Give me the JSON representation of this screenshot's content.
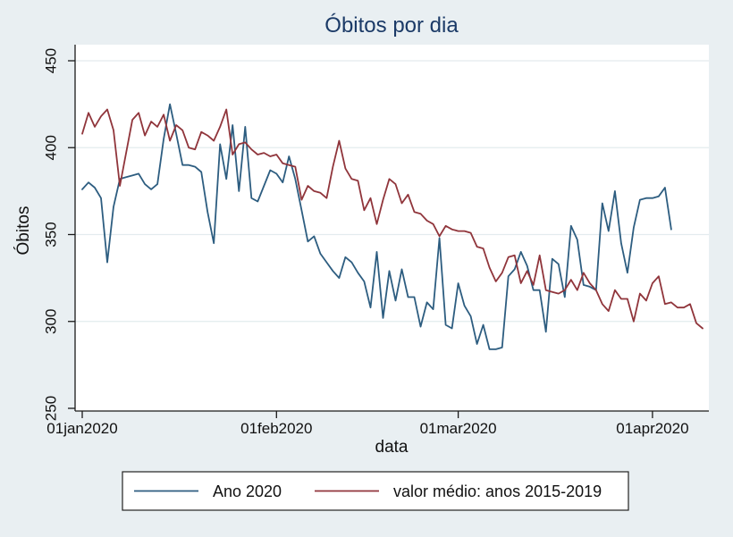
{
  "window": {
    "background": "#e9eff2",
    "plot_background": "#ffffff"
  },
  "chart_data": {
    "type": "line",
    "title": "Óbitos por dia",
    "title_color": "#1b3a67",
    "xlabel": "data",
    "ylabel": "Óbitos",
    "ylim": [
      250,
      450
    ],
    "yticks": [
      250,
      300,
      350,
      400,
      450
    ],
    "xtick_labels": [
      "01jan2020",
      "01feb2020",
      "01mar2020",
      "01apr2020"
    ],
    "xtick_days": [
      0,
      31,
      60,
      91
    ],
    "x_unit": "days since 01jan2020, daily data",
    "grid": "horizontal-light",
    "axis_color": "#1a1a1a",
    "grid_color": "#e3ebee",
    "legend_position": "bottom",
    "legend_border_color": "#222222",
    "series": [
      {
        "name": "Ano 2020",
        "color": "#2d5d80",
        "start_day": 0,
        "values": [
          376,
          380,
          377,
          371,
          334,
          366,
          382,
          383,
          384,
          385,
          379,
          376,
          379,
          405,
          425,
          408,
          390,
          390,
          389,
          386,
          363,
          345,
          402,
          382,
          413,
          375,
          412,
          371,
          369,
          378,
          387,
          385,
          380,
          395,
          382,
          364,
          346,
          349,
          339,
          334,
          329,
          325,
          337,
          334,
          328,
          323,
          308,
          340,
          302,
          329,
          312,
          330,
          314,
          314,
          297,
          311,
          307,
          348,
          298,
          296,
          322,
          309,
          303,
          287,
          298,
          284,
          284,
          285,
          326,
          330,
          340,
          332,
          318,
          318,
          294,
          336,
          333,
          314,
          355,
          347,
          321,
          320,
          318,
          368,
          352,
          375,
          345,
          328,
          354,
          370,
          371,
          371,
          372,
          377,
          353
        ]
      },
      {
        "name": "valor médio: anos 2015-2019",
        "color": "#90353b",
        "start_day": 0,
        "values": [
          408,
          420,
          412,
          418,
          422,
          410,
          378,
          397,
          416,
          420,
          407,
          415,
          412,
          419,
          404,
          413,
          410,
          400,
          399,
          409,
          407,
          404,
          412,
          422,
          396,
          402,
          403,
          399,
          396,
          397,
          395,
          396,
          391,
          390,
          389,
          370,
          378,
          375,
          374,
          371,
          389,
          404,
          388,
          382,
          381,
          364,
          371,
          356,
          370,
          382,
          379,
          368,
          373,
          363,
          362,
          358,
          356,
          349,
          355,
          353,
          352,
          352,
          351,
          343,
          342,
          331,
          323,
          328,
          337,
          338,
          322,
          329,
          321,
          338,
          318,
          317,
          316,
          318,
          324,
          318,
          328,
          322,
          318,
          310,
          306,
          318,
          313,
          313,
          300,
          316,
          312,
          322,
          326,
          310,
          311,
          308,
          308,
          310,
          299,
          296
        ]
      }
    ]
  }
}
